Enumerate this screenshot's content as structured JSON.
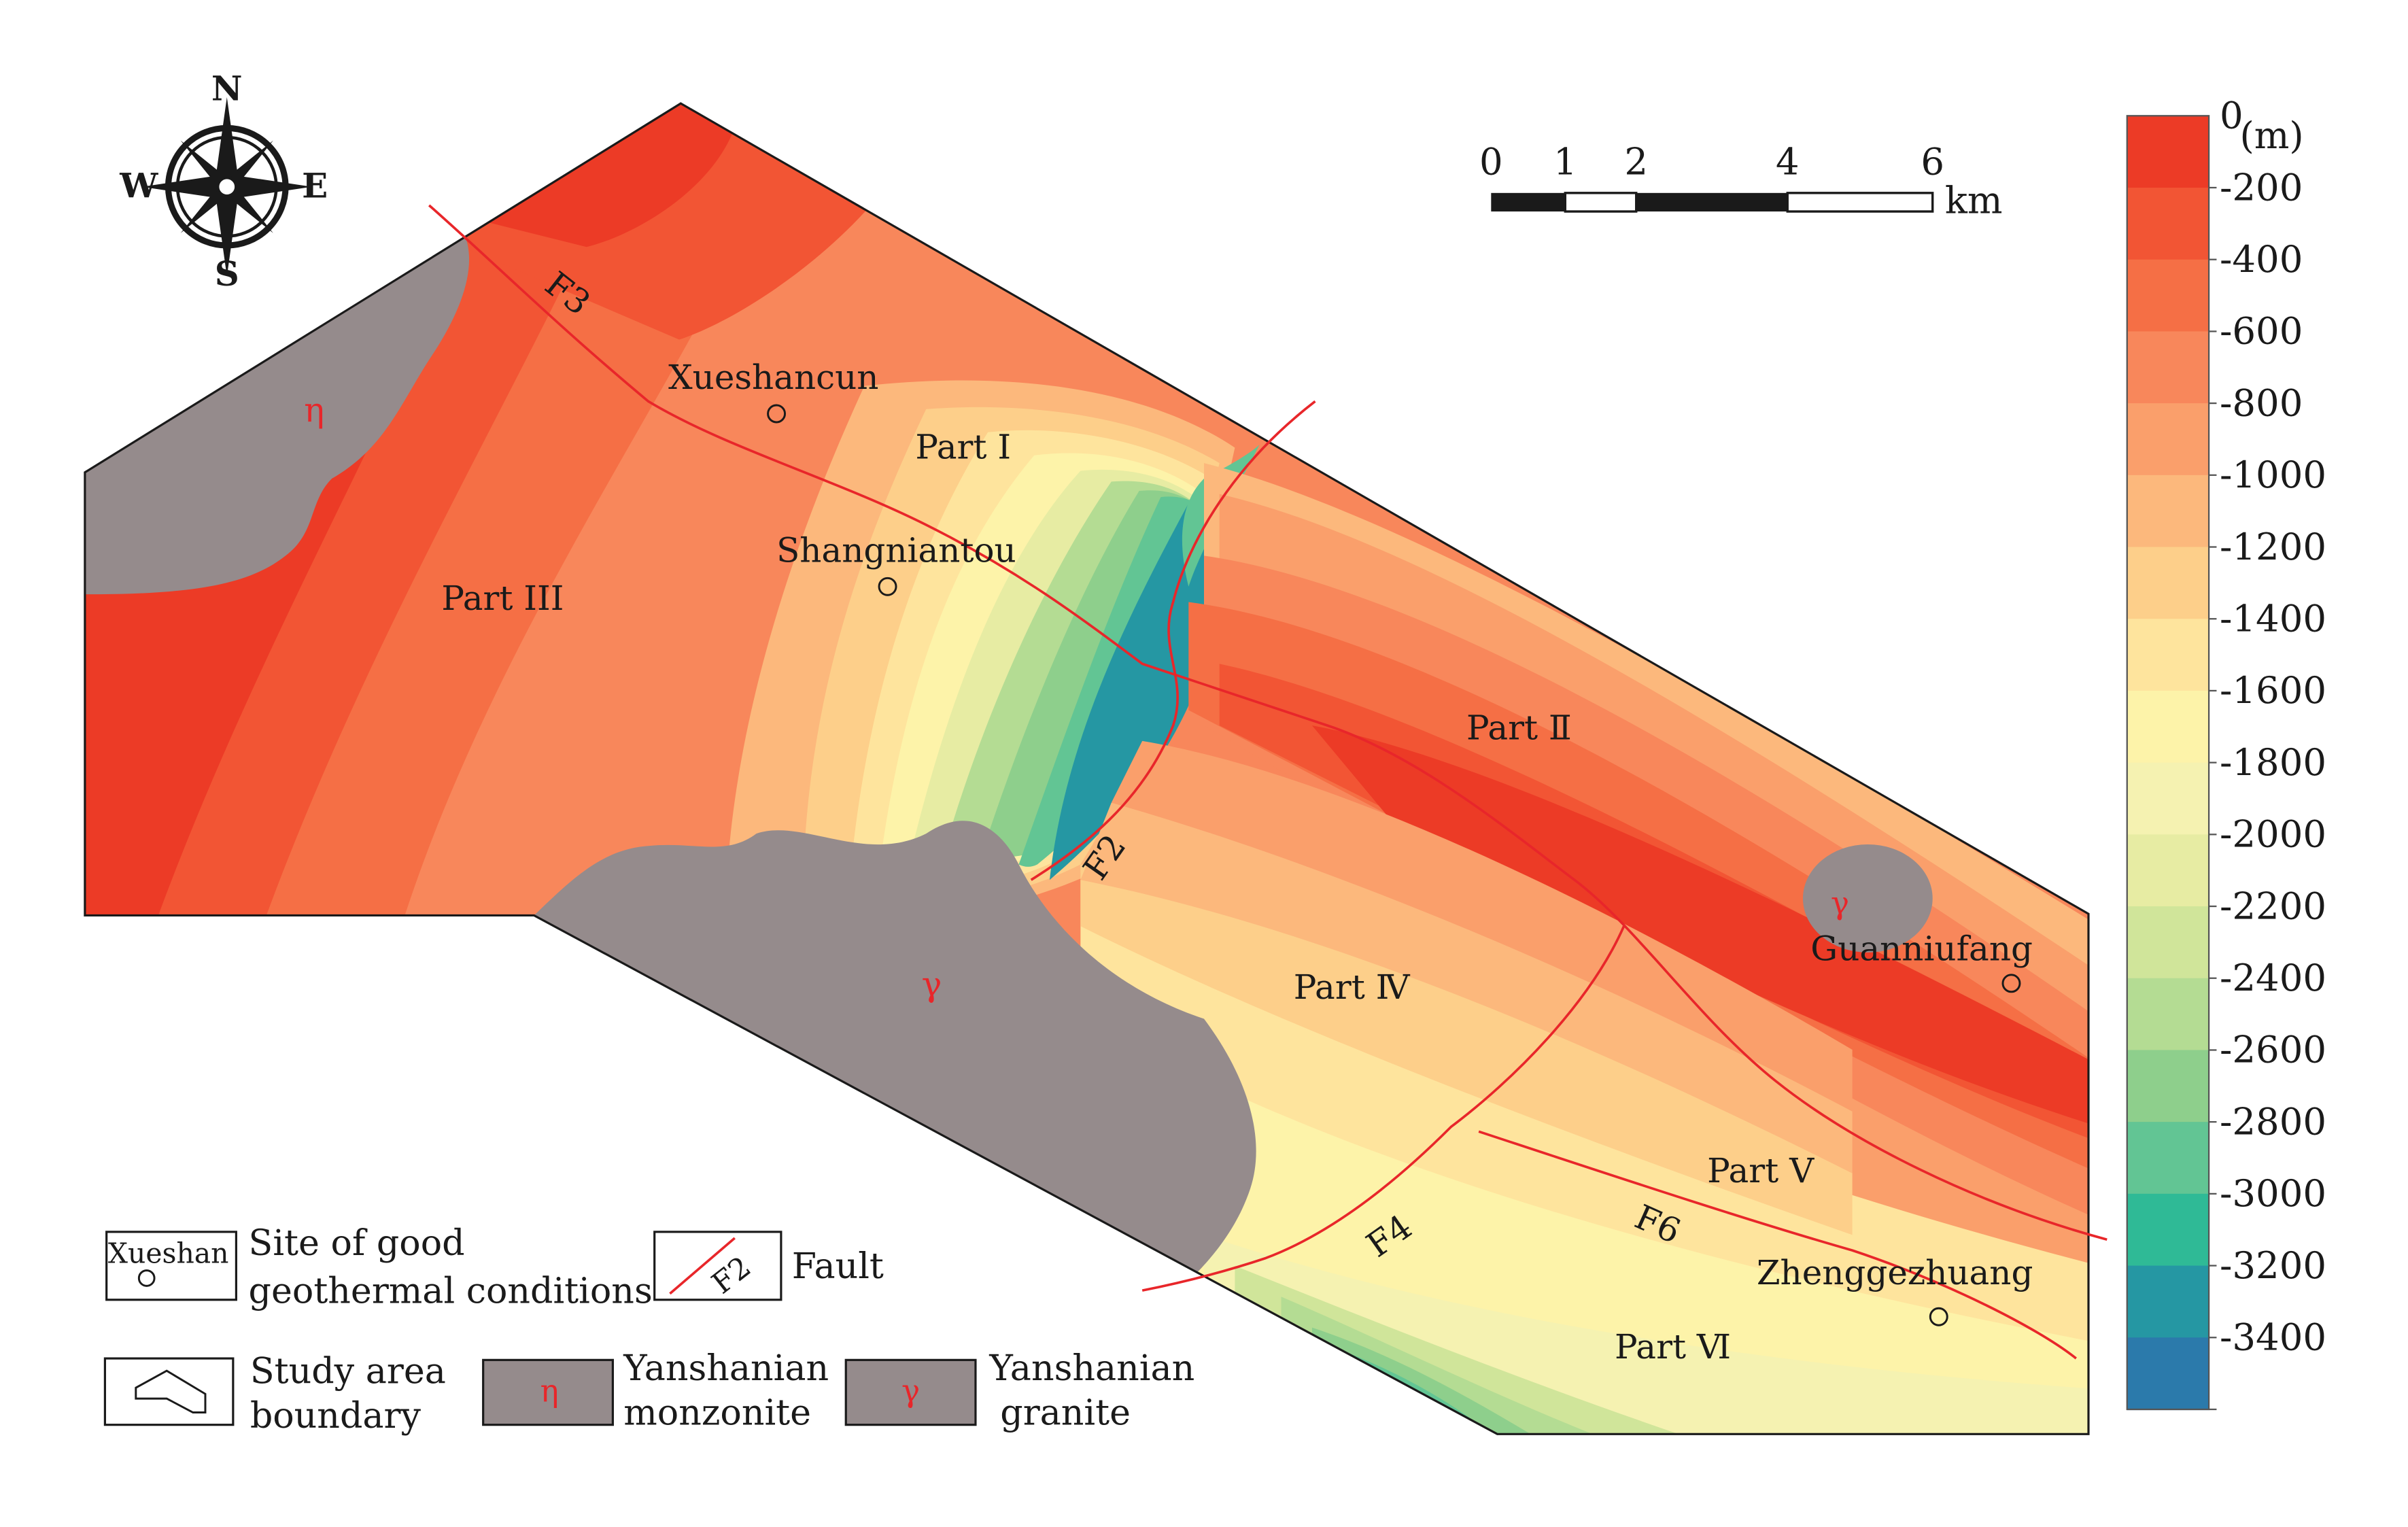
{
  "compass": {
    "n": "N",
    "s": "S",
    "e": "E",
    "w": "W"
  },
  "scale_bar": {
    "ticks": [
      "0",
      "1",
      "2",
      "4",
      "6"
    ],
    "unit": "km"
  },
  "colorbar": {
    "unit": "(m)",
    "labels": [
      "0",
      "-200",
      "-400",
      "-600",
      "-800",
      "-1000",
      "-1200",
      "-1400",
      "-1600",
      "-1800",
      "-2000",
      "-2200",
      "-2400",
      "-2600",
      "-2800",
      "-3000",
      "-3200",
      "-3400"
    ],
    "colors": [
      "#ec3b26",
      "#f25534",
      "#f56f45",
      "#f8875b",
      "#fa9f6b",
      "#fcb87c",
      "#fdcf8a",
      "#fee49d",
      "#fdf3a9",
      "#f5f2b1",
      "#e7eca3",
      "#d0e59a",
      "#b4dc93",
      "#8ecf8c",
      "#62c594",
      "#2fba96",
      "#2597a3",
      "#2b7aab"
    ]
  },
  "places": {
    "xueshancun": "Xueshancun",
    "shangniantou": "Shangniantou",
    "guanniufang": "Guanniufang",
    "zhenggezhuang": "Zhenggezhuang"
  },
  "parts": {
    "p1": "Part Ⅰ",
    "p2": "Part Ⅱ",
    "p3": "Part III",
    "p4": "Part Ⅳ",
    "p5": "Part Ⅴ",
    "p6": "Part Ⅵ"
  },
  "faults": {
    "f2": "F2",
    "f3": "F3",
    "f4": "F4",
    "f6": "F6"
  },
  "rock_symbols": {
    "monzonite": "η",
    "granite": "γ"
  },
  "legend": {
    "site_sample": "Xueshan",
    "site_line1": "Site of good",
    "site_line2": "geothermal conditions",
    "fault_sample": "F2",
    "fault": "Fault",
    "boundary_line1": "Study area",
    "boundary_line2": "boundary",
    "monzonite_symbol": "η",
    "monzonite_line1": "Yanshanian",
    "monzonite_line2": "monzonite",
    "granite_symbol": "γ",
    "granite_line1": "Yanshanian",
    "granite_line2": "granite"
  },
  "colors": {
    "fault_line": "#e8262a",
    "rock_fill": "#958b8c",
    "boundary": "#1a1a1a"
  }
}
